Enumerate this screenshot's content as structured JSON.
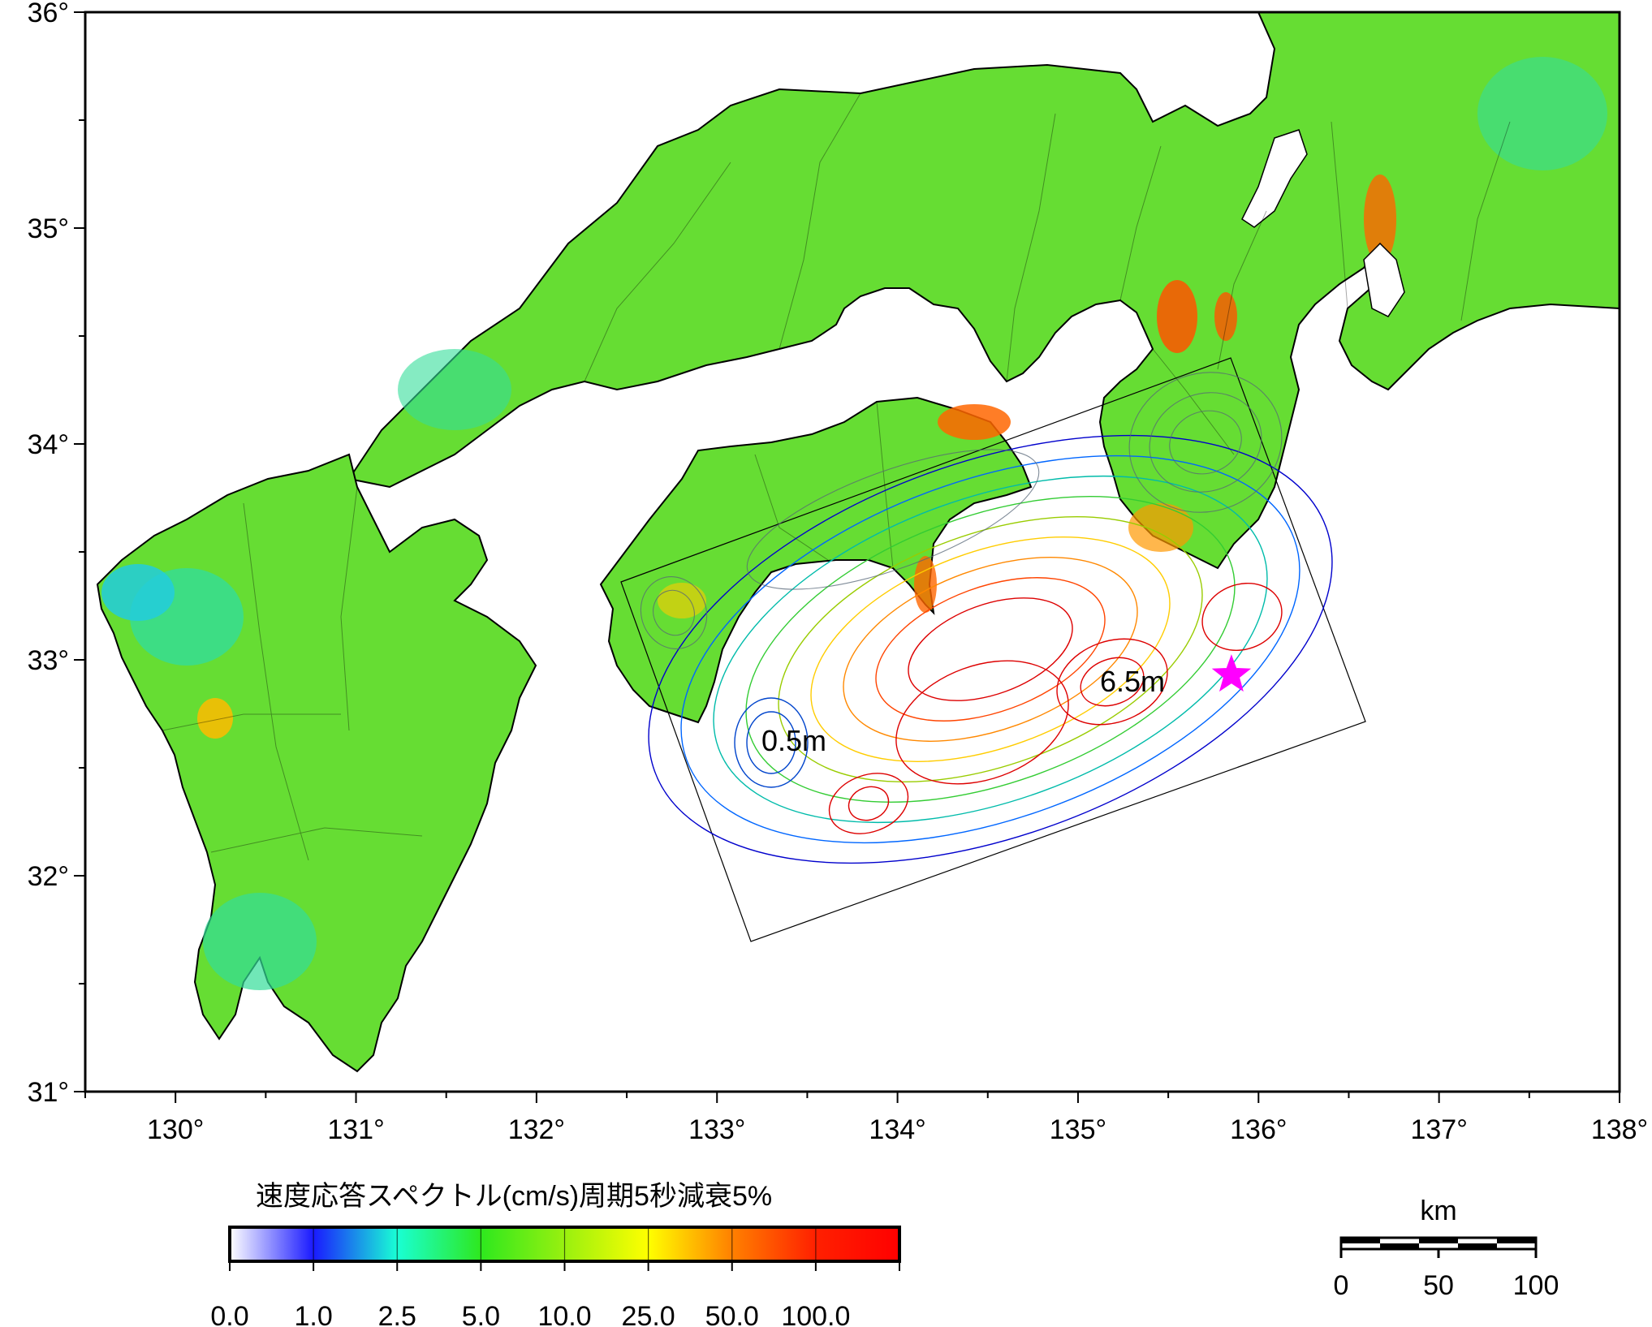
{
  "map": {
    "lon_range": [
      129.5,
      138
    ],
    "lat_range": [
      31,
      36
    ],
    "lon_ticks": [
      "130°",
      "131°",
      "132°",
      "133°",
      "134°",
      "135°",
      "136°",
      "137°",
      "138°"
    ],
    "lat_ticks": [
      "31°",
      "32°",
      "33°",
      "34°",
      "35°",
      "36°"
    ],
    "land_color": "#66dd33",
    "sea_color": "#ffffff"
  },
  "legend": {
    "title": "速度応答スペクトル(cm/s)周期5秒減衰5%",
    "labels": [
      "0.0",
      "1.0",
      "2.5",
      "5.0",
      "10.0",
      "25.0",
      "50.0",
      "100.0"
    ],
    "colors": [
      "#ffffff",
      "#1a1aff",
      "#19ffd4",
      "#2ee81e",
      "#99f00f",
      "#ffff00",
      "#ff8000",
      "#ff0000"
    ]
  },
  "fault": {
    "slip_labels": {
      "max": "6.5m",
      "min": "0.5m"
    },
    "contour_colors": [
      "#0000cc",
      "#0066ff",
      "#00bbaa",
      "#33cc33",
      "#99cc00",
      "#ffcc00",
      "#ff8800",
      "#ff4400",
      "#dd0000"
    ]
  },
  "epicenter": {
    "lon": 135.85,
    "lat": 32.93,
    "color": "#ff00ff",
    "icon": "star-icon"
  },
  "scale_bar": {
    "unit": "km",
    "labels": [
      "0",
      "50",
      "100"
    ]
  }
}
